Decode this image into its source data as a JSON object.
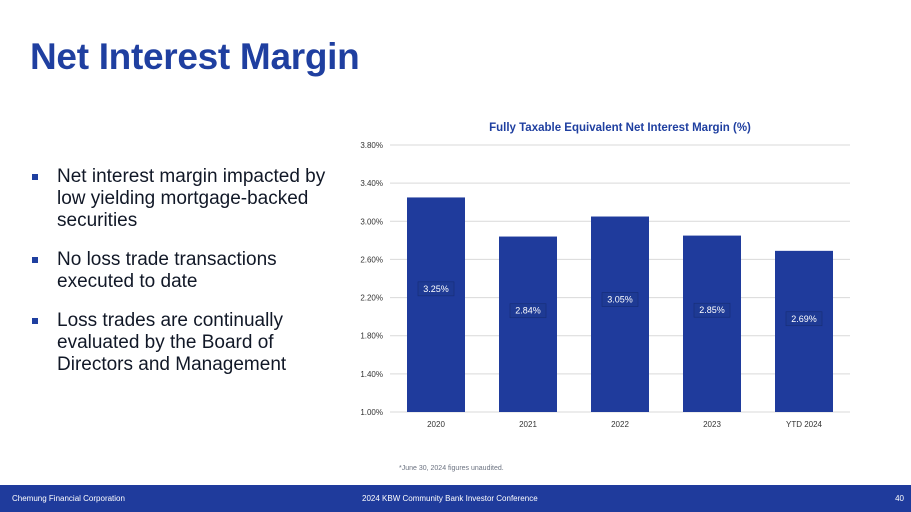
{
  "slide": {
    "title": "Net Interest Margin",
    "bullets": [
      "Net interest margin impacted by low yielding mortgage-backed securities",
      "No loss trade transactions executed to date",
      "Loss trades are continually evaluated by the Board of Directors and Management"
    ],
    "footnote": "*June 30, 2024 figures unaudited.",
    "footer": {
      "company": "Chemung Financial Corporation",
      "event": "2024 KBW Community Bank Investor Conference",
      "page": "40"
    }
  },
  "colors": {
    "accent": "#1f3fa0",
    "bar": "#1f3b9c",
    "footer_bg": "#1f3b9c"
  },
  "chart_data": {
    "type": "bar",
    "title": "Fully Taxable Equivalent Net Interest Margin (%)",
    "categories": [
      "2020",
      "2021",
      "2022",
      "2023",
      "YTD 2024"
    ],
    "values": [
      3.25,
      2.84,
      3.05,
      2.85,
      2.69
    ],
    "data_labels": [
      "3.25%",
      "2.84%",
      "3.05%",
      "2.85%",
      "2.69%"
    ],
    "yticks": [
      1.0,
      1.4,
      1.8,
      2.2,
      2.6,
      3.0,
      3.4,
      3.8
    ],
    "ytick_labels": [
      "1.00%",
      "1.40%",
      "1.80%",
      "2.20%",
      "2.60%",
      "3.00%",
      "3.40%",
      "3.80%"
    ],
    "ylim": [
      1.0,
      3.8
    ],
    "xlabel": "",
    "ylabel": "",
    "grid": true
  }
}
